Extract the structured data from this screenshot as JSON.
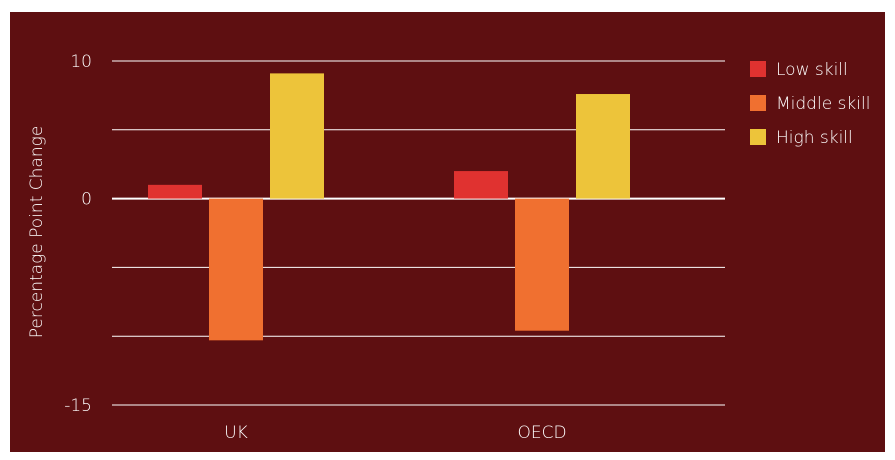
{
  "chart_data": {
    "type": "bar",
    "categories": [
      "UK",
      "OECD"
    ],
    "series": [
      {
        "name": "Low skill",
        "color": "#e03230",
        "values": [
          1.0,
          2.0
        ]
      },
      {
        "name": "Middle skill",
        "color": "#f07030",
        "values": [
          -10.3,
          -9.6
        ]
      },
      {
        "name": "High skill",
        "color": "#edc43a",
        "values": [
          9.1,
          7.6
        ]
      }
    ],
    "ylabel": "Percentage Point Change",
    "xlabel": "",
    "ylim": [
      -15,
      10
    ],
    "yticks": [
      10,
      5,
      0,
      -5,
      -10,
      -15
    ],
    "ytick_labels": [
      "10",
      "",
      "0",
      "",
      "",
      "-15"
    ],
    "grid": true,
    "legend_position": "right",
    "background_color": "#5e0f11",
    "gridline_color": "#ffffff"
  }
}
